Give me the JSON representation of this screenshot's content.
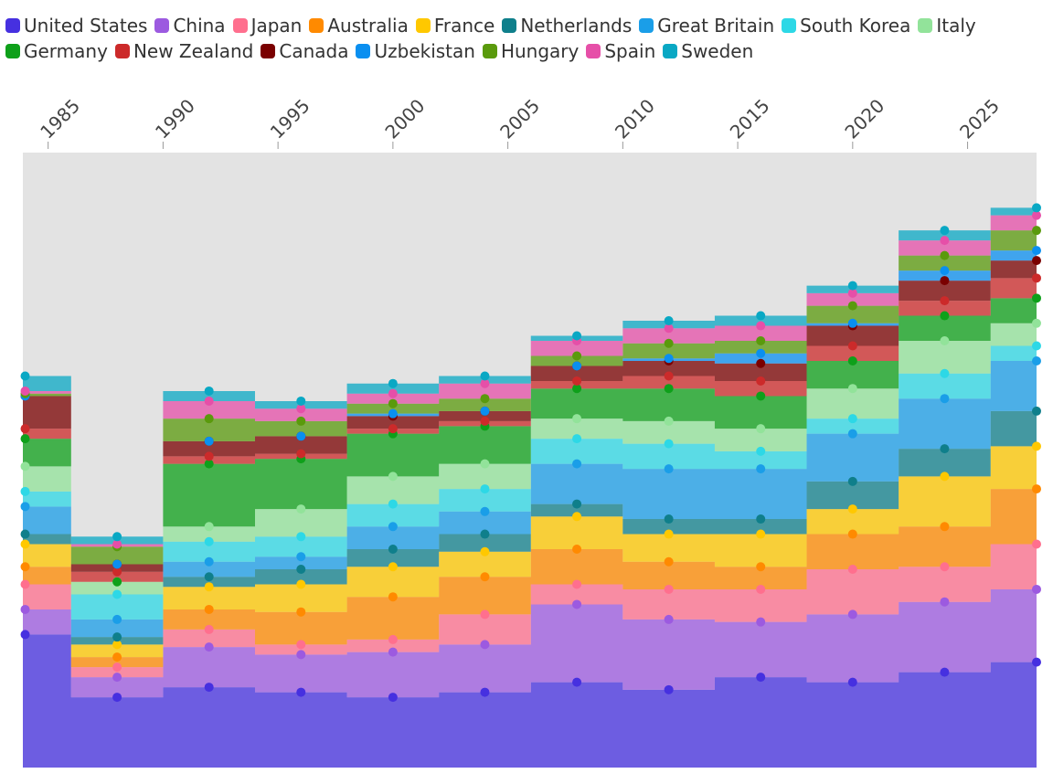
{
  "chart_data": {
    "type": "area",
    "stacked": true,
    "step": true,
    "legend_position": "top-left",
    "x_tick_labels": [
      "1985",
      "1990",
      "1995",
      "2000",
      "2005",
      "2010",
      "2015",
      "2020",
      "2025"
    ],
    "x_ticks": [
      1985,
      1990,
      1995,
      2000,
      2005,
      2010,
      2015,
      2020,
      2025
    ],
    "xlim": [
      1983.9,
      2028
    ],
    "ylim": [
      0,
      245
    ],
    "x": [
      1984,
      1988,
      1992,
      1996,
      2000,
      2004,
      2008,
      2012,
      2016,
      2020,
      2024,
      2028
    ],
    "series": [
      {
        "name": "United States",
        "color": "#4630e0",
        "values": [
          53.0,
          28.0,
          32.0,
          30.0,
          28.0,
          30.0,
          34.0,
          31.0,
          36.0,
          34.0,
          38.0,
          42.0
        ]
      },
      {
        "name": "China",
        "color": "#9c5ae0",
        "values": [
          10.0,
          8.0,
          16.0,
          15.0,
          18.0,
          19.0,
          31.0,
          28.0,
          22.0,
          27.0,
          28.0,
          29.0
        ]
      },
      {
        "name": "Japan",
        "color": "#ff6f8e",
        "values": [
          10.0,
          4.0,
          7.0,
          4.0,
          5.0,
          12.0,
          8.0,
          12.0,
          13.0,
          18.0,
          14.0,
          18.0
        ]
      },
      {
        "name": "Australia",
        "color": "#ff8a00",
        "values": [
          7.0,
          4.0,
          8.0,
          13.0,
          17.0,
          15.0,
          14.0,
          11.0,
          9.0,
          14.0,
          16.0,
          22.0
        ]
      },
      {
        "name": "France",
        "color": "#ffc800",
        "values": [
          9.0,
          5.0,
          9.0,
          11.0,
          12.0,
          10.0,
          13.0,
          11.0,
          13.0,
          10.0,
          20.0,
          17.0
        ]
      },
      {
        "name": "Netherlands",
        "color": "#0f7f8b",
        "values": [
          4.0,
          3.0,
          4.0,
          6.0,
          7.0,
          7.0,
          5.0,
          6.0,
          6.0,
          11.0,
          11.0,
          14.0
        ]
      },
      {
        "name": "Great Britain",
        "color": "#1a9ee8",
        "values": [
          11.0,
          7.0,
          6.0,
          5.0,
          9.0,
          9.0,
          16.0,
          20.0,
          20.0,
          19.0,
          20.0,
          20.0
        ]
      },
      {
        "name": "South Korea",
        "color": "#2dd8e6",
        "values": [
          6.0,
          10.0,
          8.0,
          8.0,
          9.0,
          9.0,
          10.0,
          10.0,
          7.0,
          6.0,
          10.0,
          6.0
        ]
      },
      {
        "name": "Italy",
        "color": "#92e39a",
        "values": [
          10.0,
          5.0,
          6.0,
          11.0,
          11.0,
          10.0,
          8.0,
          9.0,
          9.0,
          12.0,
          13.0,
          9.0
        ]
      },
      {
        "name": "Germany",
        "color": "#0ea01a",
        "values": [
          11.0,
          0.0,
          25.0,
          20.0,
          17.0,
          15.0,
          12.0,
          13.0,
          13.0,
          11.0,
          10.0,
          10.0
        ]
      },
      {
        "name": "New Zealand",
        "color": "#cc2a2a",
        "values": [
          4.0,
          4.0,
          3.0,
          2.0,
          2.0,
          2.0,
          3.0,
          5.0,
          6.0,
          6.0,
          6.0,
          8.0
        ]
      },
      {
        "name": "Canada",
        "color": "#7a0000",
        "values": [
          13.0,
          3.0,
          6.0,
          7.0,
          5.0,
          4.0,
          6.0,
          6.0,
          7.0,
          8.0,
          8.0,
          7.0
        ]
      },
      {
        "name": "Uzbekistan",
        "color": "#0a8ff0",
        "values": [
          0.0,
          0.0,
          0.0,
          0.0,
          1.0,
          0.0,
          0.0,
          1.0,
          4.0,
          1.0,
          4.0,
          4.0
        ]
      },
      {
        "name": "Hungary",
        "color": "#5a9a0c",
        "values": [
          1.0,
          7.0,
          9.0,
          6.0,
          4.0,
          5.0,
          4.0,
          6.0,
          5.0,
          7.0,
          6.0,
          8.0
        ]
      },
      {
        "name": "Spain",
        "color": "#e64fa8",
        "values": [
          1.0,
          1.0,
          7.0,
          5.0,
          4.0,
          6.0,
          6.0,
          6.0,
          6.0,
          5.0,
          6.0,
          6.0
        ]
      },
      {
        "name": "Sweden",
        "color": "#09a8c4",
        "values": [
          6.0,
          3.0,
          4.0,
          3.0,
          4.0,
          3.0,
          2.0,
          3.0,
          4.0,
          3.0,
          4.0,
          3.0
        ]
      }
    ]
  }
}
